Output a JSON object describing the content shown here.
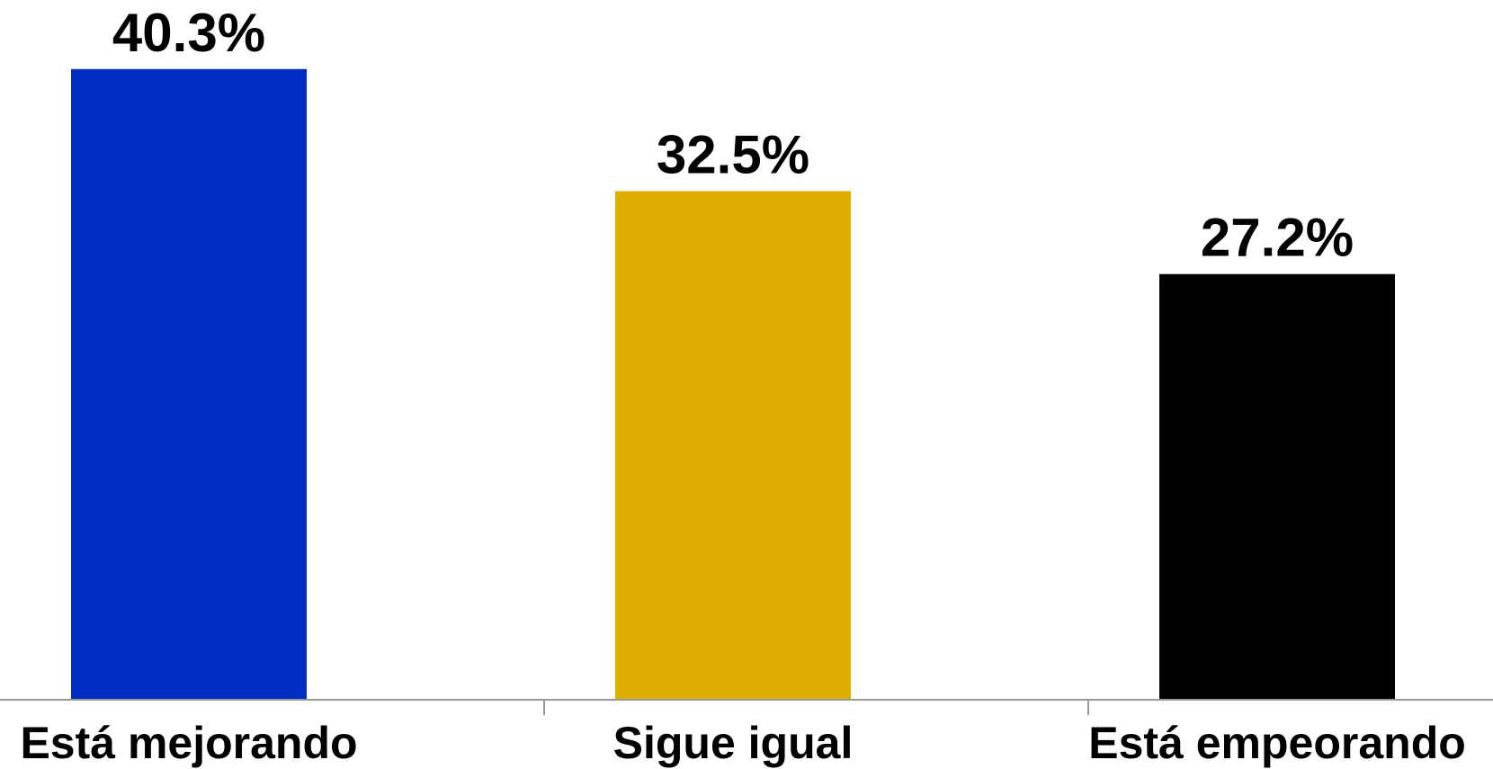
{
  "chart_data": {
    "type": "bar",
    "categories": [
      "Está mejorando",
      "Sigue igual",
      "Está empeorando"
    ],
    "values": [
      40.3,
      32.5,
      27.2
    ],
    "data_labels": [
      "40.3%",
      "32.5%",
      "27.2%"
    ],
    "colors": [
      "#002EC2",
      "#E0AE00",
      "#000000"
    ],
    "title": "",
    "xlabel": "",
    "ylabel": "",
    "ylim": [
      0,
      44
    ],
    "grid": false,
    "legend": "none"
  }
}
